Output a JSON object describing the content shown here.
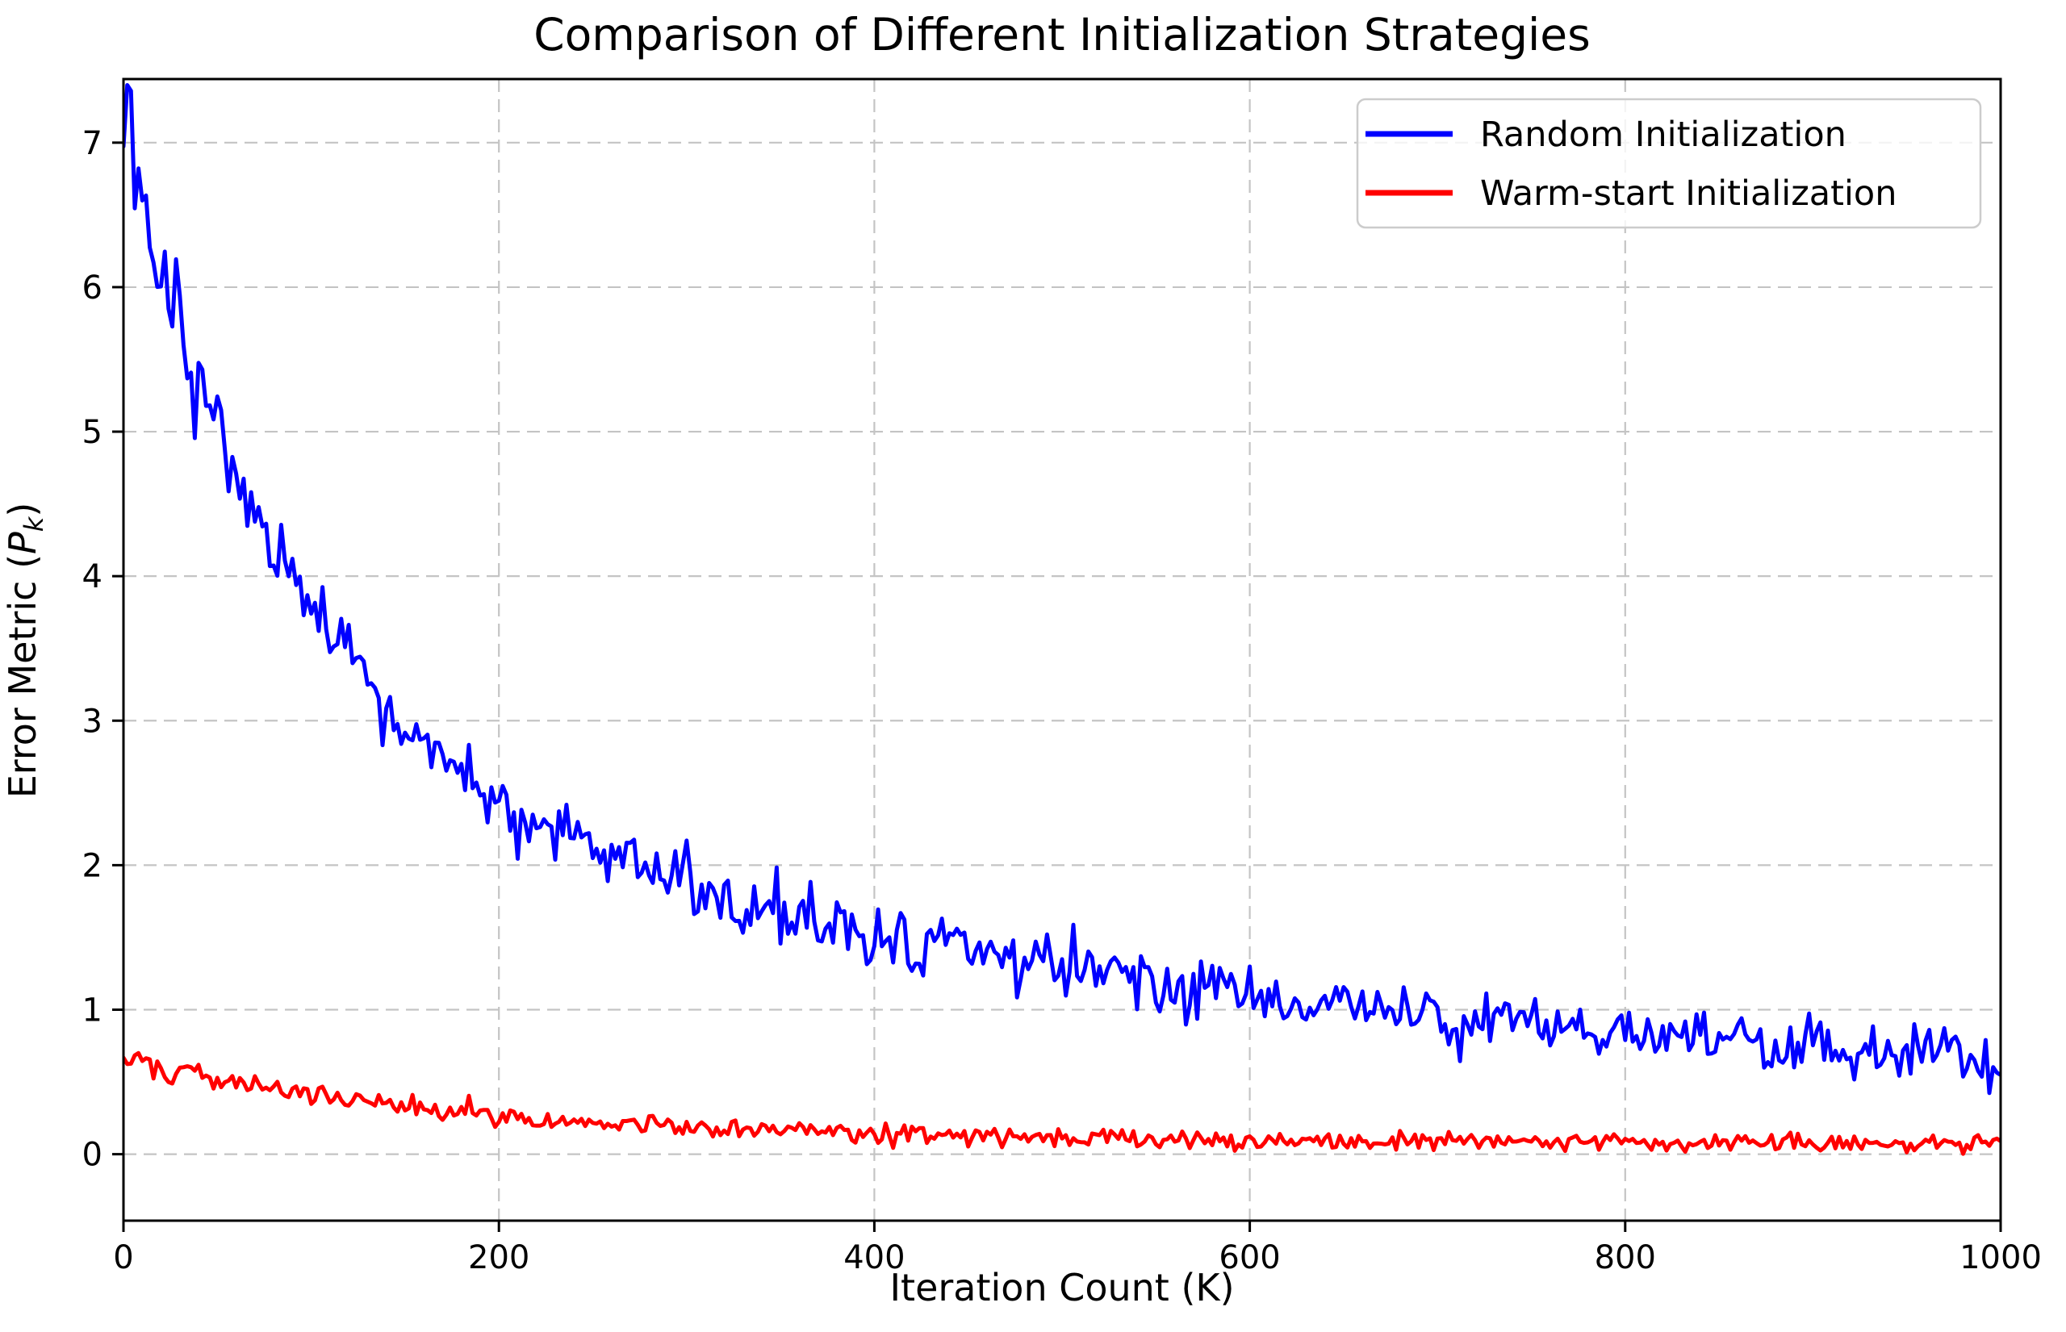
{
  "figure": {
    "title": "Comparison of Different Initialization Strategies",
    "background_color": "#ffffff"
  },
  "axes": {
    "xlabel": "Iteration Count (K)",
    "ylabel": {
      "prefix": "Error Metric (",
      "symbol": "P",
      "subscript": "k",
      "suffix": ")"
    },
    "xticks": [
      0,
      200,
      400,
      600,
      800,
      1000
    ],
    "yticks": [
      0,
      1,
      2,
      3,
      4,
      5,
      6,
      7
    ],
    "xlim": [
      0,
      1000
    ],
    "ylim": [
      -0.46,
      7.44
    ],
    "grid": {
      "visible": true,
      "color": "#c4c4c4",
      "dash": "16 9",
      "width": 2.2
    },
    "spine_color": "#000000",
    "tick_color": "#000000"
  },
  "legend": {
    "position": "upper right",
    "fill": "rgba(255,255,255,0.8)",
    "border_color": "#cccccc",
    "entries": [
      {
        "label": "Random Initialization",
        "color": "#0000ff"
      },
      {
        "label": "Warm-start Initialization",
        "color": "#ff0000"
      }
    ]
  },
  "chart_data": {
    "type": "line",
    "title": "Comparison of Different Initialization Strategies",
    "xlabel": "Iteration Count (K)",
    "ylabel": "Error Metric (P_k)",
    "xlim": [
      0,
      1000
    ],
    "ylim": [
      -0.46,
      7.44
    ],
    "grid": true,
    "grid_style": "dashed",
    "legend_position": "upper right",
    "x_sampling": {
      "start": 0,
      "stop": 1000,
      "step": 2
    },
    "series": [
      {
        "name": "Random Initialization",
        "color": "#0000ff",
        "line_width": 5,
        "trend_model": {
          "type": "sum_of_exponentials",
          "a1": 4.5,
          "tau1": 90,
          "a2": 2.6,
          "tau2": 700,
          "offset": 0
        },
        "noise": {
          "distribution": "gaussian",
          "sd_base": 0.1,
          "sd_scale": 0.012,
          "seed": 13
        },
        "sampled_points": [
          [
            0,
            7.1
          ],
          [
            50,
            5.0
          ],
          [
            100,
            3.7
          ],
          [
            150,
            3.0
          ],
          [
            200,
            2.4
          ],
          [
            250,
            2.1
          ],
          [
            300,
            1.85
          ],
          [
            350,
            1.65
          ],
          [
            400,
            1.5
          ],
          [
            450,
            1.4
          ],
          [
            500,
            1.3
          ],
          [
            550,
            1.2
          ],
          [
            600,
            1.1
          ],
          [
            650,
            1.0
          ],
          [
            700,
            0.95
          ],
          [
            750,
            0.9
          ],
          [
            800,
            0.83
          ],
          [
            850,
            0.78
          ],
          [
            900,
            0.72
          ],
          [
            950,
            0.68
          ],
          [
            1000,
            0.63
          ]
        ]
      },
      {
        "name": "Warm-start Initialization",
        "color": "#ff0000",
        "line_width": 5,
        "trend_model": {
          "type": "sum_of_exponentials",
          "a1": 0.58,
          "tau1": 180,
          "a2": 0,
          "tau2": 1,
          "offset": 0.08
        },
        "noise": {
          "distribution": "gaussian",
          "sd_base": 0.03,
          "sd_scale": 0.02,
          "seed": 101
        },
        "sampled_points": [
          [
            0,
            0.66
          ],
          [
            50,
            0.52
          ],
          [
            100,
            0.41
          ],
          [
            150,
            0.33
          ],
          [
            200,
            0.27
          ],
          [
            250,
            0.22
          ],
          [
            300,
            0.19
          ],
          [
            350,
            0.16
          ],
          [
            400,
            0.14
          ],
          [
            450,
            0.12
          ],
          [
            500,
            0.11
          ],
          [
            550,
            0.105
          ],
          [
            600,
            0.1
          ],
          [
            650,
            0.095
          ],
          [
            700,
            0.09
          ],
          [
            750,
            0.088
          ],
          [
            800,
            0.085
          ],
          [
            850,
            0.082
          ],
          [
            900,
            0.08
          ],
          [
            950,
            0.08
          ],
          [
            1000,
            0.08
          ]
        ]
      }
    ]
  }
}
